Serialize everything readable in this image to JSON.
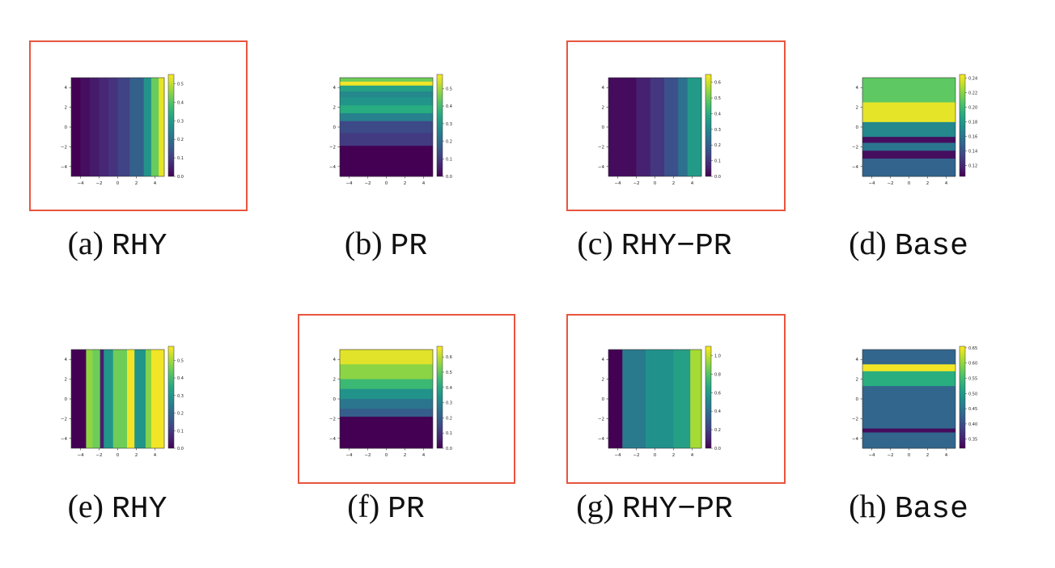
{
  "colors": {
    "highlight": "#e8553e",
    "viridis": [
      "#440154",
      "#472d7b",
      "#3b528b",
      "#2c728e",
      "#21918c",
      "#28ae80",
      "#5ec962",
      "#addc30",
      "#fde725"
    ]
  },
  "chart_data": [
    {
      "id": "a",
      "type": "heatmap",
      "label": "(a)",
      "name": "RHY",
      "highlighted": true,
      "orientation": "vertical",
      "xticks": [
        "−4",
        "−2",
        "0",
        "2",
        "4"
      ],
      "yticks": [
        "4",
        "2",
        "0",
        "−2",
        "−4"
      ],
      "xlim": [
        -5,
        5
      ],
      "ylim": [
        -5,
        5
      ],
      "colorbar": {
        "min": 0.0,
        "max": 0.55,
        "ticks": [
          "0.0",
          "0.1",
          "0.2",
          "0.3",
          "0.4",
          "0.5"
        ],
        "tick_values": [
          0.0,
          0.1,
          0.2,
          0.3,
          0.4,
          0.5
        ]
      },
      "bands": [
        {
          "from": -5.0,
          "to": -4.0,
          "value": 0.0
        },
        {
          "from": -4.0,
          "to": -3.0,
          "value": 0.02
        },
        {
          "from": -3.0,
          "to": -2.0,
          "value": 0.04
        },
        {
          "from": -2.0,
          "to": -1.0,
          "value": 0.06
        },
        {
          "from": -1.0,
          "to": 0.0,
          "value": 0.08
        },
        {
          "from": 0.0,
          "to": 1.3,
          "value": 0.11
        },
        {
          "from": 1.3,
          "to": 2.8,
          "value": 0.17
        },
        {
          "from": 2.8,
          "to": 3.6,
          "value": 0.28
        },
        {
          "from": 3.6,
          "to": 4.4,
          "value": 0.42
        },
        {
          "from": 4.4,
          "to": 5.0,
          "value": 0.53
        }
      ]
    },
    {
      "id": "b",
      "type": "heatmap",
      "label": "(b)",
      "name": "PR",
      "highlighted": false,
      "orientation": "horizontal",
      "xticks": [
        "−4",
        "−2",
        "0",
        "2",
        "4"
      ],
      "yticks": [
        "4",
        "2",
        "0",
        "−2",
        "−4"
      ],
      "xlim": [
        -5,
        5
      ],
      "ylim": [
        -5,
        5
      ],
      "colorbar": {
        "min": 0.0,
        "max": 0.58,
        "ticks": [
          "0.0",
          "0.1",
          "0.2",
          "0.3",
          "0.4",
          "0.5"
        ],
        "tick_values": [
          0.0,
          0.1,
          0.2,
          0.3,
          0.4,
          0.5
        ]
      },
      "bands": [
        {
          "from": 4.6,
          "to": 5.0,
          "value": 0.45
        },
        {
          "from": 4.2,
          "to": 4.6,
          "value": 0.57
        },
        {
          "from": 3.6,
          "to": 4.2,
          "value": 0.33
        },
        {
          "from": 3.0,
          "to": 3.6,
          "value": 0.27
        },
        {
          "from": 2.2,
          "to": 3.0,
          "value": 0.3
        },
        {
          "from": 1.4,
          "to": 2.2,
          "value": 0.36
        },
        {
          "from": 0.6,
          "to": 1.4,
          "value": 0.25
        },
        {
          "from": -0.6,
          "to": 0.6,
          "value": 0.13
        },
        {
          "from": -1.9,
          "to": -0.6,
          "value": 0.1
        },
        {
          "from": -5.0,
          "to": -1.9,
          "value": 0.0
        }
      ]
    },
    {
      "id": "c",
      "type": "heatmap",
      "label": "(c)",
      "name": "RHY−PR",
      "highlighted": true,
      "orientation": "vertical",
      "xticks": [
        "−4",
        "−2",
        "0",
        "2",
        "4"
      ],
      "yticks": [
        "4",
        "2",
        "0",
        "−2",
        "−4"
      ],
      "xlim": [
        -5,
        5
      ],
      "ylim": [
        -5,
        5
      ],
      "colorbar": {
        "min": 0.0,
        "max": 0.65,
        "ticks": [
          "0.0",
          "0.1",
          "0.2",
          "0.3",
          "0.4",
          "0.5",
          "0.6"
        ],
        "tick_values": [
          0.0,
          0.1,
          0.2,
          0.3,
          0.4,
          0.5,
          0.6
        ]
      },
      "bands": [
        {
          "from": -5.0,
          "to": -2.0,
          "value": 0.02
        },
        {
          "from": -2.0,
          "to": -0.5,
          "value": 0.06
        },
        {
          "from": -0.5,
          "to": 1.0,
          "value": 0.1
        },
        {
          "from": 1.0,
          "to": 2.5,
          "value": 0.16
        },
        {
          "from": 2.5,
          "to": 3.5,
          "value": 0.24
        },
        {
          "from": 3.5,
          "to": 5.0,
          "value": 0.35
        }
      ]
    },
    {
      "id": "d",
      "type": "heatmap",
      "label": "(d)",
      "name": "Base",
      "highlighted": false,
      "orientation": "horizontal",
      "xticks": [
        "−4",
        "−2",
        "0",
        "2",
        "4"
      ],
      "yticks": [
        "4",
        "2",
        "0",
        "−2",
        "−4"
      ],
      "xlim": [
        -5,
        5
      ],
      "ylim": [
        -5,
        5
      ],
      "colorbar": {
        "min": 0.105,
        "max": 0.245,
        "ticks": [
          "0.12",
          "0.14",
          "0.16",
          "0.18",
          "0.20",
          "0.22",
          "0.24"
        ],
        "tick_values": [
          0.12,
          0.14,
          0.16,
          0.18,
          0.2,
          0.22,
          0.24
        ]
      },
      "bands": [
        {
          "from": 2.5,
          "to": 5.0,
          "value": 0.21
        },
        {
          "from": 0.5,
          "to": 2.5,
          "value": 0.24
        },
        {
          "from": -1.0,
          "to": 0.5,
          "value": 0.17
        },
        {
          "from": -1.6,
          "to": -1.0,
          "value": 0.11
        },
        {
          "from": -2.4,
          "to": -1.6,
          "value": 0.16
        },
        {
          "from": -3.2,
          "to": -2.4,
          "value": 0.11
        },
        {
          "from": -3.8,
          "to": -3.2,
          "value": 0.15
        },
        {
          "from": -5.0,
          "to": -3.8,
          "value": 0.15
        }
      ]
    },
    {
      "id": "e",
      "type": "heatmap",
      "label": "(e)",
      "name": "RHY",
      "highlighted": false,
      "orientation": "vertical",
      "xticks": [
        "−4",
        "−2",
        "0",
        "2",
        "4"
      ],
      "yticks": [
        "4",
        "2",
        "0",
        "−2",
        "−4"
      ],
      "xlim": [
        -5,
        5
      ],
      "ylim": [
        -5,
        5
      ],
      "colorbar": {
        "min": 0.0,
        "max": 0.58,
        "ticks": [
          "0.0",
          "0.1",
          "0.2",
          "0.3",
          "0.4",
          "0.5"
        ],
        "tick_values": [
          0.0,
          0.1,
          0.2,
          0.3,
          0.4,
          0.5
        ]
      },
      "bands": [
        {
          "from": -5.0,
          "to": -3.4,
          "value": 0.0
        },
        {
          "from": -3.4,
          "to": -2.7,
          "value": 0.48
        },
        {
          "from": -2.7,
          "to": -1.9,
          "value": 0.45
        },
        {
          "from": -1.9,
          "to": -1.5,
          "value": 0.05
        },
        {
          "from": -1.5,
          "to": -0.5,
          "value": 0.3
        },
        {
          "from": -0.5,
          "to": 1.0,
          "value": 0.45
        },
        {
          "from": 1.0,
          "to": 1.8,
          "value": 0.57
        },
        {
          "from": 1.8,
          "to": 3.0,
          "value": 0.3
        },
        {
          "from": 3.0,
          "to": 3.6,
          "value": 0.47
        },
        {
          "from": 3.6,
          "to": 5.0,
          "value": 0.57
        }
      ]
    },
    {
      "id": "f",
      "type": "heatmap",
      "label": "(f)",
      "name": "PR",
      "highlighted": true,
      "orientation": "horizontal",
      "xticks": [
        "−4",
        "−2",
        "0",
        "2",
        "4"
      ],
      "yticks": [
        "4",
        "2",
        "0",
        "−2",
        "−4"
      ],
      "xlim": [
        -5,
        5
      ],
      "ylim": [
        -5,
        5
      ],
      "colorbar": {
        "min": 0.0,
        "max": 0.67,
        "ticks": [
          "0.0",
          "0.1",
          "0.2",
          "0.3",
          "0.4",
          "0.5",
          "0.6"
        ],
        "tick_values": [
          0.0,
          0.1,
          0.2,
          0.3,
          0.4,
          0.5,
          0.6
        ]
      },
      "bands": [
        {
          "from": 3.5,
          "to": 5.0,
          "value": 0.64
        },
        {
          "from": 2.0,
          "to": 3.5,
          "value": 0.55
        },
        {
          "from": 1.0,
          "to": 2.0,
          "value": 0.45
        },
        {
          "from": 0.0,
          "to": 1.0,
          "value": 0.34
        },
        {
          "from": -1.0,
          "to": 0.0,
          "value": 0.26
        },
        {
          "from": -1.8,
          "to": -1.0,
          "value": 0.2
        },
        {
          "from": -5.0,
          "to": -1.8,
          "value": 0.0
        }
      ]
    },
    {
      "id": "g",
      "type": "heatmap",
      "label": "(g)",
      "name": "RHY−PR",
      "highlighted": true,
      "orientation": "vertical",
      "xticks": [
        "−4",
        "−2",
        "0",
        "2",
        "4"
      ],
      "yticks": [
        "4",
        "2",
        "0",
        "−2",
        "−4"
      ],
      "xlim": [
        -5,
        5
      ],
      "ylim": [
        -5,
        5
      ],
      "colorbar": {
        "min": 0.0,
        "max": 1.1,
        "ticks": [
          "0.0",
          "0.2",
          "0.4",
          "0.6",
          "0.8",
          "1.0"
        ],
        "tick_values": [
          0.0,
          0.2,
          0.4,
          0.6,
          0.8,
          1.0
        ]
      },
      "bands": [
        {
          "from": -5.0,
          "to": -3.5,
          "value": 0.0
        },
        {
          "from": -3.5,
          "to": -1.0,
          "value": 0.45
        },
        {
          "from": -1.0,
          "to": 2.0,
          "value": 0.55
        },
        {
          "from": 2.0,
          "to": 3.8,
          "value": 0.62
        },
        {
          "from": 3.8,
          "to": 5.0,
          "value": 0.95
        }
      ]
    },
    {
      "id": "h",
      "type": "heatmap",
      "label": "(h)",
      "name": "Base",
      "highlighted": false,
      "orientation": "horizontal",
      "xticks": [
        "−4",
        "−2",
        "0",
        "2",
        "4"
      ],
      "yticks": [
        "4",
        "2",
        "0",
        "−2",
        "−4"
      ],
      "xlim": [
        -5,
        5
      ],
      "ylim": [
        -5,
        5
      ],
      "colorbar": {
        "min": 0.32,
        "max": 0.655,
        "ticks": [
          "0.35",
          "0.40",
          "0.45",
          "0.50",
          "0.55",
          "0.60",
          "0.65"
        ],
        "tick_values": [
          0.35,
          0.4,
          0.45,
          0.5,
          0.55,
          0.6,
          0.65
        ]
      },
      "bands": [
        {
          "from": 3.5,
          "to": 5.0,
          "value": 0.43
        },
        {
          "from": 2.8,
          "to": 3.5,
          "value": 0.65
        },
        {
          "from": 1.3,
          "to": 2.8,
          "value": 0.53
        },
        {
          "from": -3.0,
          "to": 1.3,
          "value": 0.43
        },
        {
          "from": -3.4,
          "to": -3.0,
          "value": 0.33
        },
        {
          "from": -5.0,
          "to": -3.4,
          "value": 0.43
        }
      ]
    }
  ]
}
